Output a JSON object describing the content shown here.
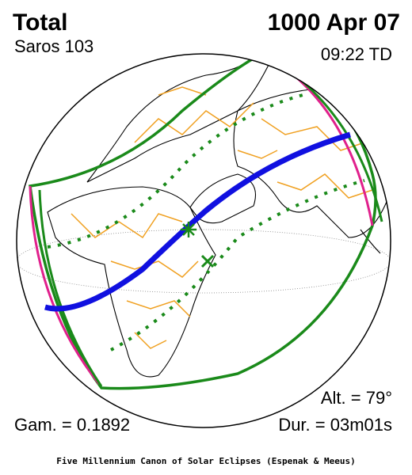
{
  "header": {
    "type": "Total",
    "saros": "Saros 103",
    "date": "1000 Apr 07",
    "time": "09:22 TD"
  },
  "stats": {
    "altitude": "Alt. = 79°",
    "gamma": "Gam. = 0.1892",
    "duration": "Dur. = 03m01s"
  },
  "footer": {
    "credit": "Five Millennium Canon of Solar Eclipses (Espenak & Meeus)"
  }
}
